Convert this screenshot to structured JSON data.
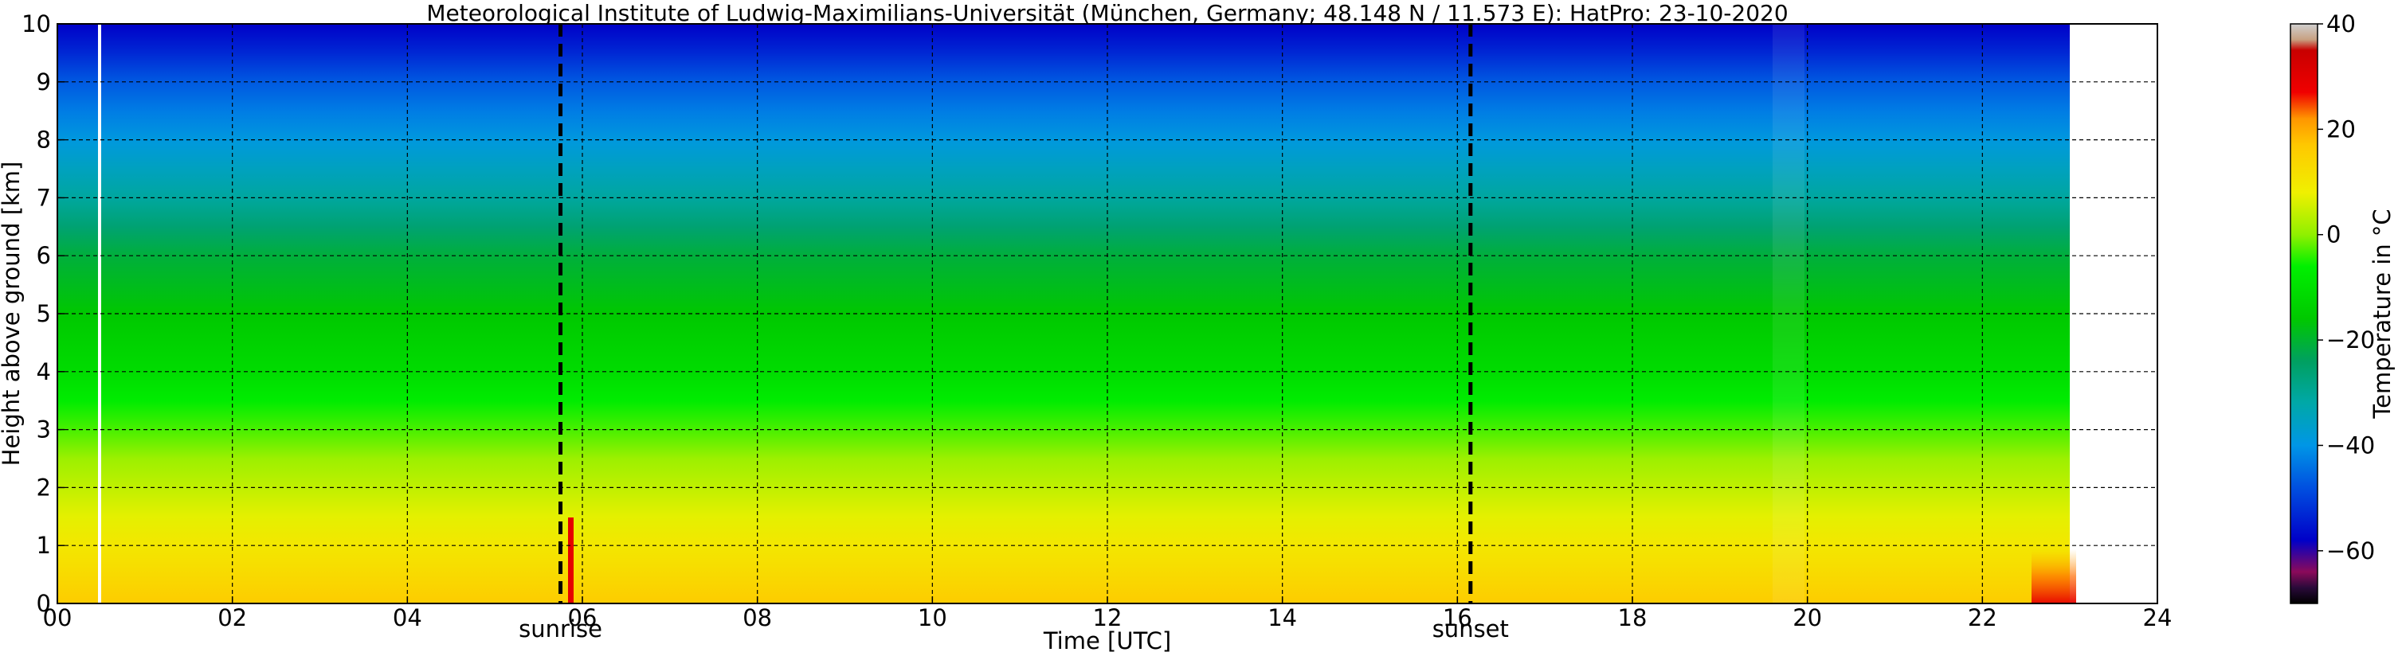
{
  "chart_data": {
    "type": "heatmap",
    "title": "Meteorological Institute of Ludwig-Maximilians-Universität (München, Germany; 48.148 N / 11.573 E):    HatPro: 23-10-2020",
    "xlabel": "Time [UTC]",
    "ylabel": "Height above ground [km]",
    "xlim": [
      0,
      24
    ],
    "ylim": [
      0,
      10
    ],
    "x_ticks": [
      "00",
      "02",
      "04",
      "06",
      "08",
      "10",
      "12",
      "14",
      "16",
      "18",
      "20",
      "22",
      "24"
    ],
    "y_ticks": [
      "0",
      "1",
      "2",
      "3",
      "4",
      "5",
      "6",
      "7",
      "8",
      "9",
      "10"
    ],
    "grid": true,
    "data_end_time": 23.0,
    "temperature_profile": {
      "height_km": [
        0,
        0.5,
        1,
        1.5,
        2,
        2.5,
        3,
        3.5,
        4,
        5,
        6,
        6.5,
        7,
        7.5,
        8,
        8.5,
        9,
        9.5,
        10
      ],
      "temperature_c": [
        16,
        13,
        10,
        7,
        4,
        1,
        -3,
        -7,
        -11,
        -16,
        -21,
        -26,
        -31,
        -35,
        -39,
        -43,
        -47,
        -53,
        -58
      ]
    },
    "markers": [
      {
        "label": "sunrise",
        "time": 5.75
      },
      {
        "label": "sunset",
        "time": 16.15
      }
    ],
    "colorbar": {
      "label": "Temperature in °C",
      "range": [
        -70,
        40
      ],
      "ticks": [
        "40",
        "20",
        "0",
        "−20",
        "−40",
        "−60"
      ],
      "tick_values": [
        40,
        20,
        0,
        -20,
        -40,
        -60
      ],
      "stops": [
        {
          "value": -70,
          "color": "#000000"
        },
        {
          "value": -67,
          "color": "#2a0a3a"
        },
        {
          "value": -64,
          "color": "#8b0a5a"
        },
        {
          "value": -58,
          "color": "#0000c8"
        },
        {
          "value": -48,
          "color": "#0050e0"
        },
        {
          "value": -40,
          "color": "#0096e6"
        },
        {
          "value": -32,
          "color": "#00a8a8"
        },
        {
          "value": -24,
          "color": "#00a060"
        },
        {
          "value": -16,
          "color": "#00c800"
        },
        {
          "value": -6,
          "color": "#00f000"
        },
        {
          "value": 0,
          "color": "#90f000"
        },
        {
          "value": 8,
          "color": "#f0f000"
        },
        {
          "value": 17,
          "color": "#ffc800"
        },
        {
          "value": 22,
          "color": "#ff9600"
        },
        {
          "value": 27,
          "color": "#f00000"
        },
        {
          "value": 35,
          "color": "#c80000"
        },
        {
          "value": 37,
          "color": "#c8a080"
        },
        {
          "value": 40,
          "color": "#d0d0d0"
        }
      ]
    }
  }
}
